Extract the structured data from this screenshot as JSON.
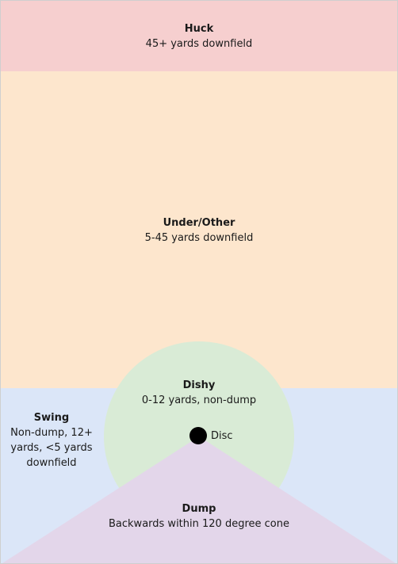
{
  "colors": {
    "huck": "#f6cfcf",
    "under": "#fde6cd",
    "swing": "#dbe6f8",
    "dishy": "#d9ebd6",
    "dump": "#e3d6ea",
    "border": "#cfcfcf",
    "disc": "#000000",
    "text": "#1a1a1a"
  },
  "zones": {
    "huck": {
      "title": "Huck",
      "desc": "45+ yards downfield"
    },
    "under": {
      "title": "Under/Other",
      "desc": "5-45 yards downfield"
    },
    "swing": {
      "title": "Swing",
      "desc": "Non-dump, 12+ yards, <5 yards downfield"
    },
    "dishy": {
      "title": "Dishy",
      "desc": "0-12 yards, non-dump"
    },
    "dump": {
      "title": "Dump",
      "desc": "Backwards within 120 degree cone"
    }
  },
  "disc": {
    "label": "Disc"
  }
}
